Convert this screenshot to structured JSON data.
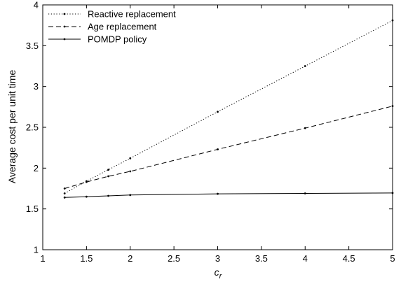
{
  "chart_data": {
    "type": "line",
    "xlabel": "c",
    "xlabel_subscript": "r",
    "ylabel": "Average cost per unit time",
    "xlim": [
      1,
      5
    ],
    "ylim": [
      1,
      4
    ],
    "x_ticks": [
      "1",
      "1.5",
      "2",
      "2.5",
      "3",
      "3.5",
      "4",
      "4.5",
      "5"
    ],
    "y_ticks": [
      "1",
      "1.5",
      "2",
      "2.5",
      "3",
      "3.5",
      "4"
    ],
    "grid": false,
    "legend_position": "top-left",
    "series": [
      {
        "name": "Reactive replacement",
        "line_style": "dotted",
        "color": "#000000",
        "x": [
          1.25,
          1.5,
          1.75,
          2,
          3,
          4,
          5
        ],
        "y": [
          1.69,
          1.84,
          1.98,
          2.12,
          2.69,
          3.25,
          3.81
        ]
      },
      {
        "name": "Age replacement",
        "line_style": "dashed",
        "color": "#000000",
        "x": [
          1.25,
          1.5,
          1.75,
          2,
          3,
          4,
          5
        ],
        "y": [
          1.75,
          1.83,
          1.9,
          1.96,
          2.23,
          2.49,
          2.76
        ]
      },
      {
        "name": "POMDP policy",
        "line_style": "solid",
        "color": "#000000",
        "x": [
          1.25,
          1.5,
          1.75,
          2,
          3,
          4,
          5
        ],
        "y": [
          1.64,
          1.65,
          1.66,
          1.67,
          1.685,
          1.69,
          1.695
        ]
      }
    ]
  }
}
